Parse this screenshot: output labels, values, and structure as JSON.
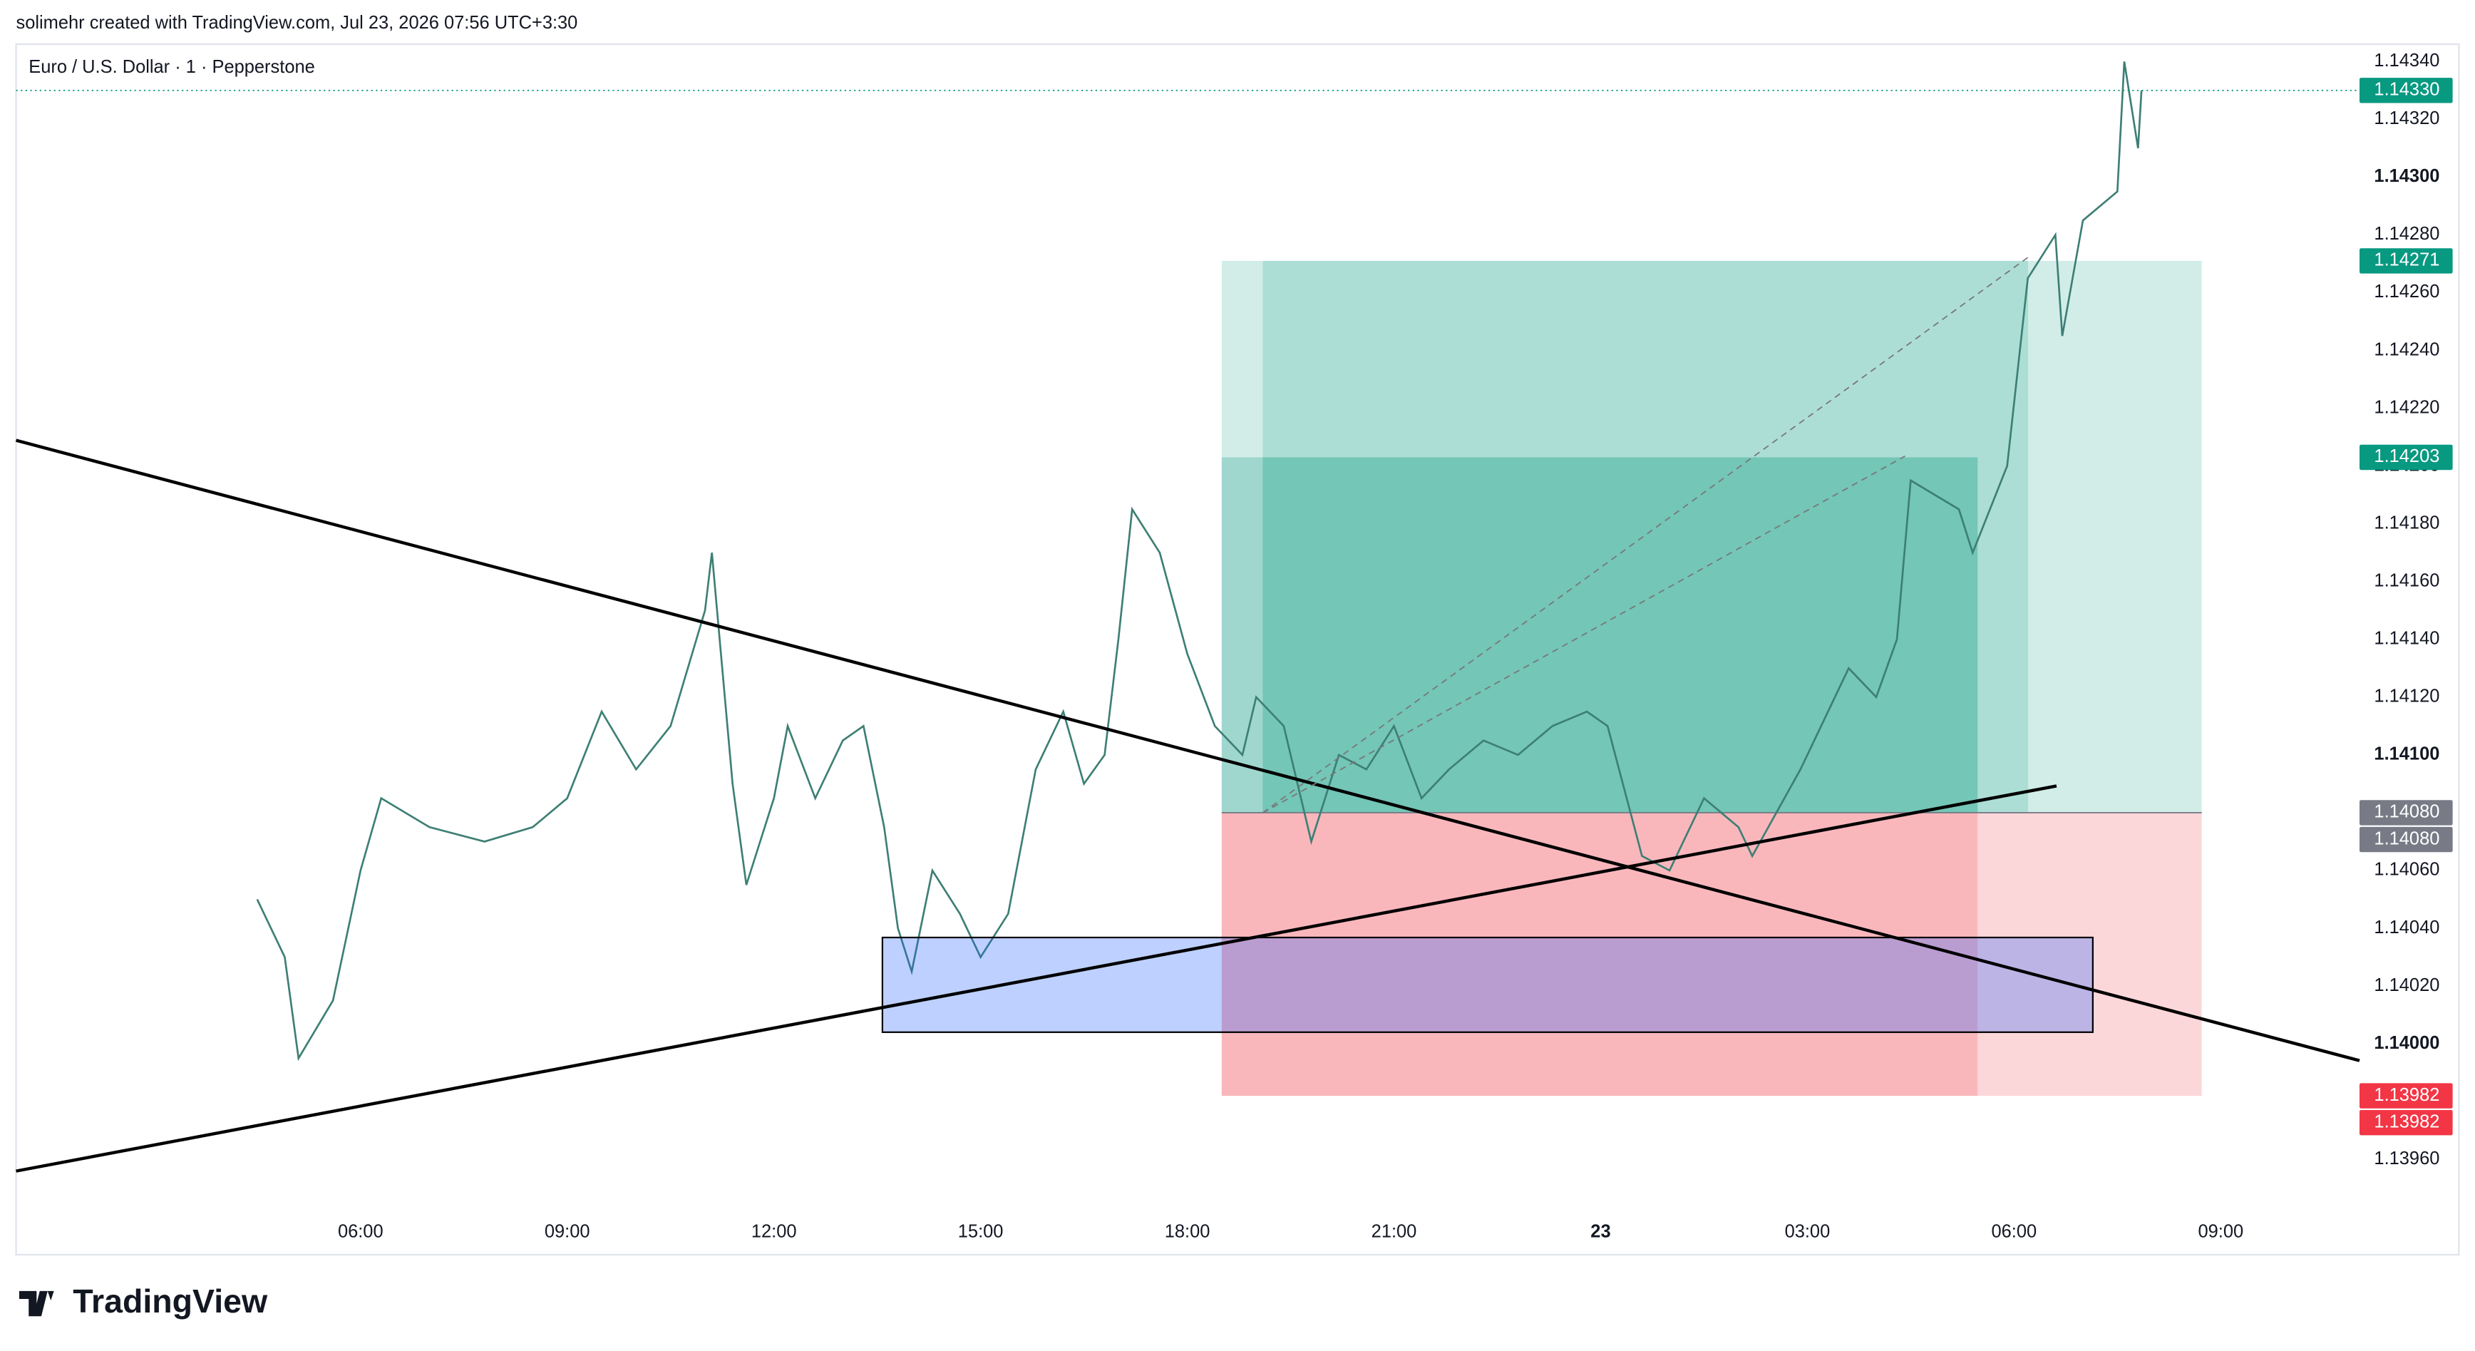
{
  "header": "solimehr created with TradingView.com, Jul 23, 2026 07:56 UTC+3:30",
  "logo": "TradingView",
  "chart_data": {
    "type": "line",
    "title": "Euro / U.S. Dollar · 1 · Pepperstone",
    "color": "#3d7f74",
    "x": [
      4.5,
      4.9,
      5.1,
      5.6,
      6.0,
      6.3,
      7.0,
      7.8,
      8.5,
      9.0,
      9.5,
      10.0,
      10.5,
      11.0,
      11.1,
      11.4,
      11.6,
      12.0,
      12.2,
      12.6,
      13.0,
      13.3,
      13.6,
      13.8,
      14.0,
      14.3,
      14.7,
      15.0,
      15.4,
      15.8,
      16.2,
      16.5,
      16.8,
      17.0,
      17.2,
      17.6,
      18.0,
      18.4,
      18.8,
      19.0,
      19.4,
      19.8,
      20.2,
      20.6,
      21.0,
      21.4,
      21.8,
      22.3,
      22.8,
      23.3,
      23.8,
      24.1,
      24.6,
      25.0,
      25.5,
      26.0,
      26.2,
      26.9,
      27.6,
      28.0,
      28.3,
      28.5,
      29.2,
      29.4,
      29.9,
      30.2,
      30.6,
      30.7,
      31.0,
      31.5,
      31.6,
      31.8,
      31.85
    ],
    "values": [
      1.1405,
      1.1403,
      1.13995,
      1.14015,
      1.1406,
      1.14085,
      1.14075,
      1.1407,
      1.14075,
      1.14085,
      1.14115,
      1.14095,
      1.1411,
      1.1415,
      1.1417,
      1.1409,
      1.14055,
      1.14085,
      1.1411,
      1.14085,
      1.14105,
      1.1411,
      1.14075,
      1.1404,
      1.14025,
      1.1406,
      1.14045,
      1.1403,
      1.14045,
      1.14095,
      1.14115,
      1.1409,
      1.141,
      1.1414,
      1.14185,
      1.1417,
      1.14135,
      1.1411,
      1.141,
      1.1412,
      1.1411,
      1.1407,
      1.141,
      1.14095,
      1.1411,
      1.14085,
      1.14095,
      1.14105,
      1.141,
      1.1411,
      1.14115,
      1.1411,
      1.14065,
      1.1406,
      1.14085,
      1.14075,
      1.14065,
      1.14095,
      1.1413,
      1.1412,
      1.1414,
      1.14195,
      1.14185,
      1.1417,
      1.142,
      1.14265,
      1.1428,
      1.14245,
      1.14285,
      1.14295,
      1.1434,
      1.1431,
      1.1433
    ],
    "xlim": [
      1.0,
      34.9
    ],
    "ylim": [
      1.13927,
      1.14346
    ],
    "xticks": [
      {
        "value": 6,
        "label": "06:00"
      },
      {
        "value": 9,
        "label": "09:00"
      },
      {
        "value": 12,
        "label": "12:00"
      },
      {
        "value": 15,
        "label": "15:00"
      },
      {
        "value": 18,
        "label": "18:00"
      },
      {
        "value": 21,
        "label": "21:00"
      },
      {
        "value": 24,
        "label": "23"
      },
      {
        "value": 27,
        "label": "03:00"
      },
      {
        "value": 30,
        "label": "06:00"
      },
      {
        "value": 33,
        "label": "09:00"
      }
    ],
    "yticks": [
      {
        "value": 1.1396,
        "label": "1.13960"
      },
      {
        "value": 1.1398,
        "label": "1.13980"
      },
      {
        "value": 1.14,
        "label": "1.14000"
      },
      {
        "value": 1.1402,
        "label": "1.14020"
      },
      {
        "value": 1.1404,
        "label": "1.14040"
      },
      {
        "value": 1.1406,
        "label": "1.14060"
      },
      {
        "value": 1.1408,
        "label": "1.14080"
      },
      {
        "value": 1.141,
        "label": "1.14100"
      },
      {
        "value": 1.1412,
        "label": "1.14120"
      },
      {
        "value": 1.1414,
        "label": "1.14140"
      },
      {
        "value": 1.1416,
        "label": "1.14160"
      },
      {
        "value": 1.1418,
        "label": "1.14180"
      },
      {
        "value": 1.142,
        "label": "1.14200"
      },
      {
        "value": 1.1422,
        "label": "1.14220"
      },
      {
        "value": 1.1424,
        "label": "1.14240"
      },
      {
        "value": 1.1426,
        "label": "1.14260"
      },
      {
        "value": 1.1428,
        "label": "1.14280"
      },
      {
        "value": 1.143,
        "label": "1.14300"
      },
      {
        "value": 1.1432,
        "label": "1.14320"
      },
      {
        "value": 1.1434,
        "label": "1.14340"
      }
    ],
    "price_labels": [
      {
        "value": 1.1433,
        "label": "1.14330",
        "color": "#089981"
      },
      {
        "value": 1.14271,
        "label": "1.14271",
        "color": "#089981"
      },
      {
        "value": 1.14203,
        "label": "1.14203",
        "color": "#089981"
      },
      {
        "value": 1.1408,
        "label": "1.14080",
        "color": "#787b86"
      },
      {
        "value": 1.1408,
        "label": "1.14080",
        "color": "#787b86"
      },
      {
        "value": 1.13982,
        "label": "1.13982",
        "color": "#f23645"
      },
      {
        "value": 1.13982,
        "label": "1.13982",
        "color": "#f23645"
      }
    ]
  }
}
